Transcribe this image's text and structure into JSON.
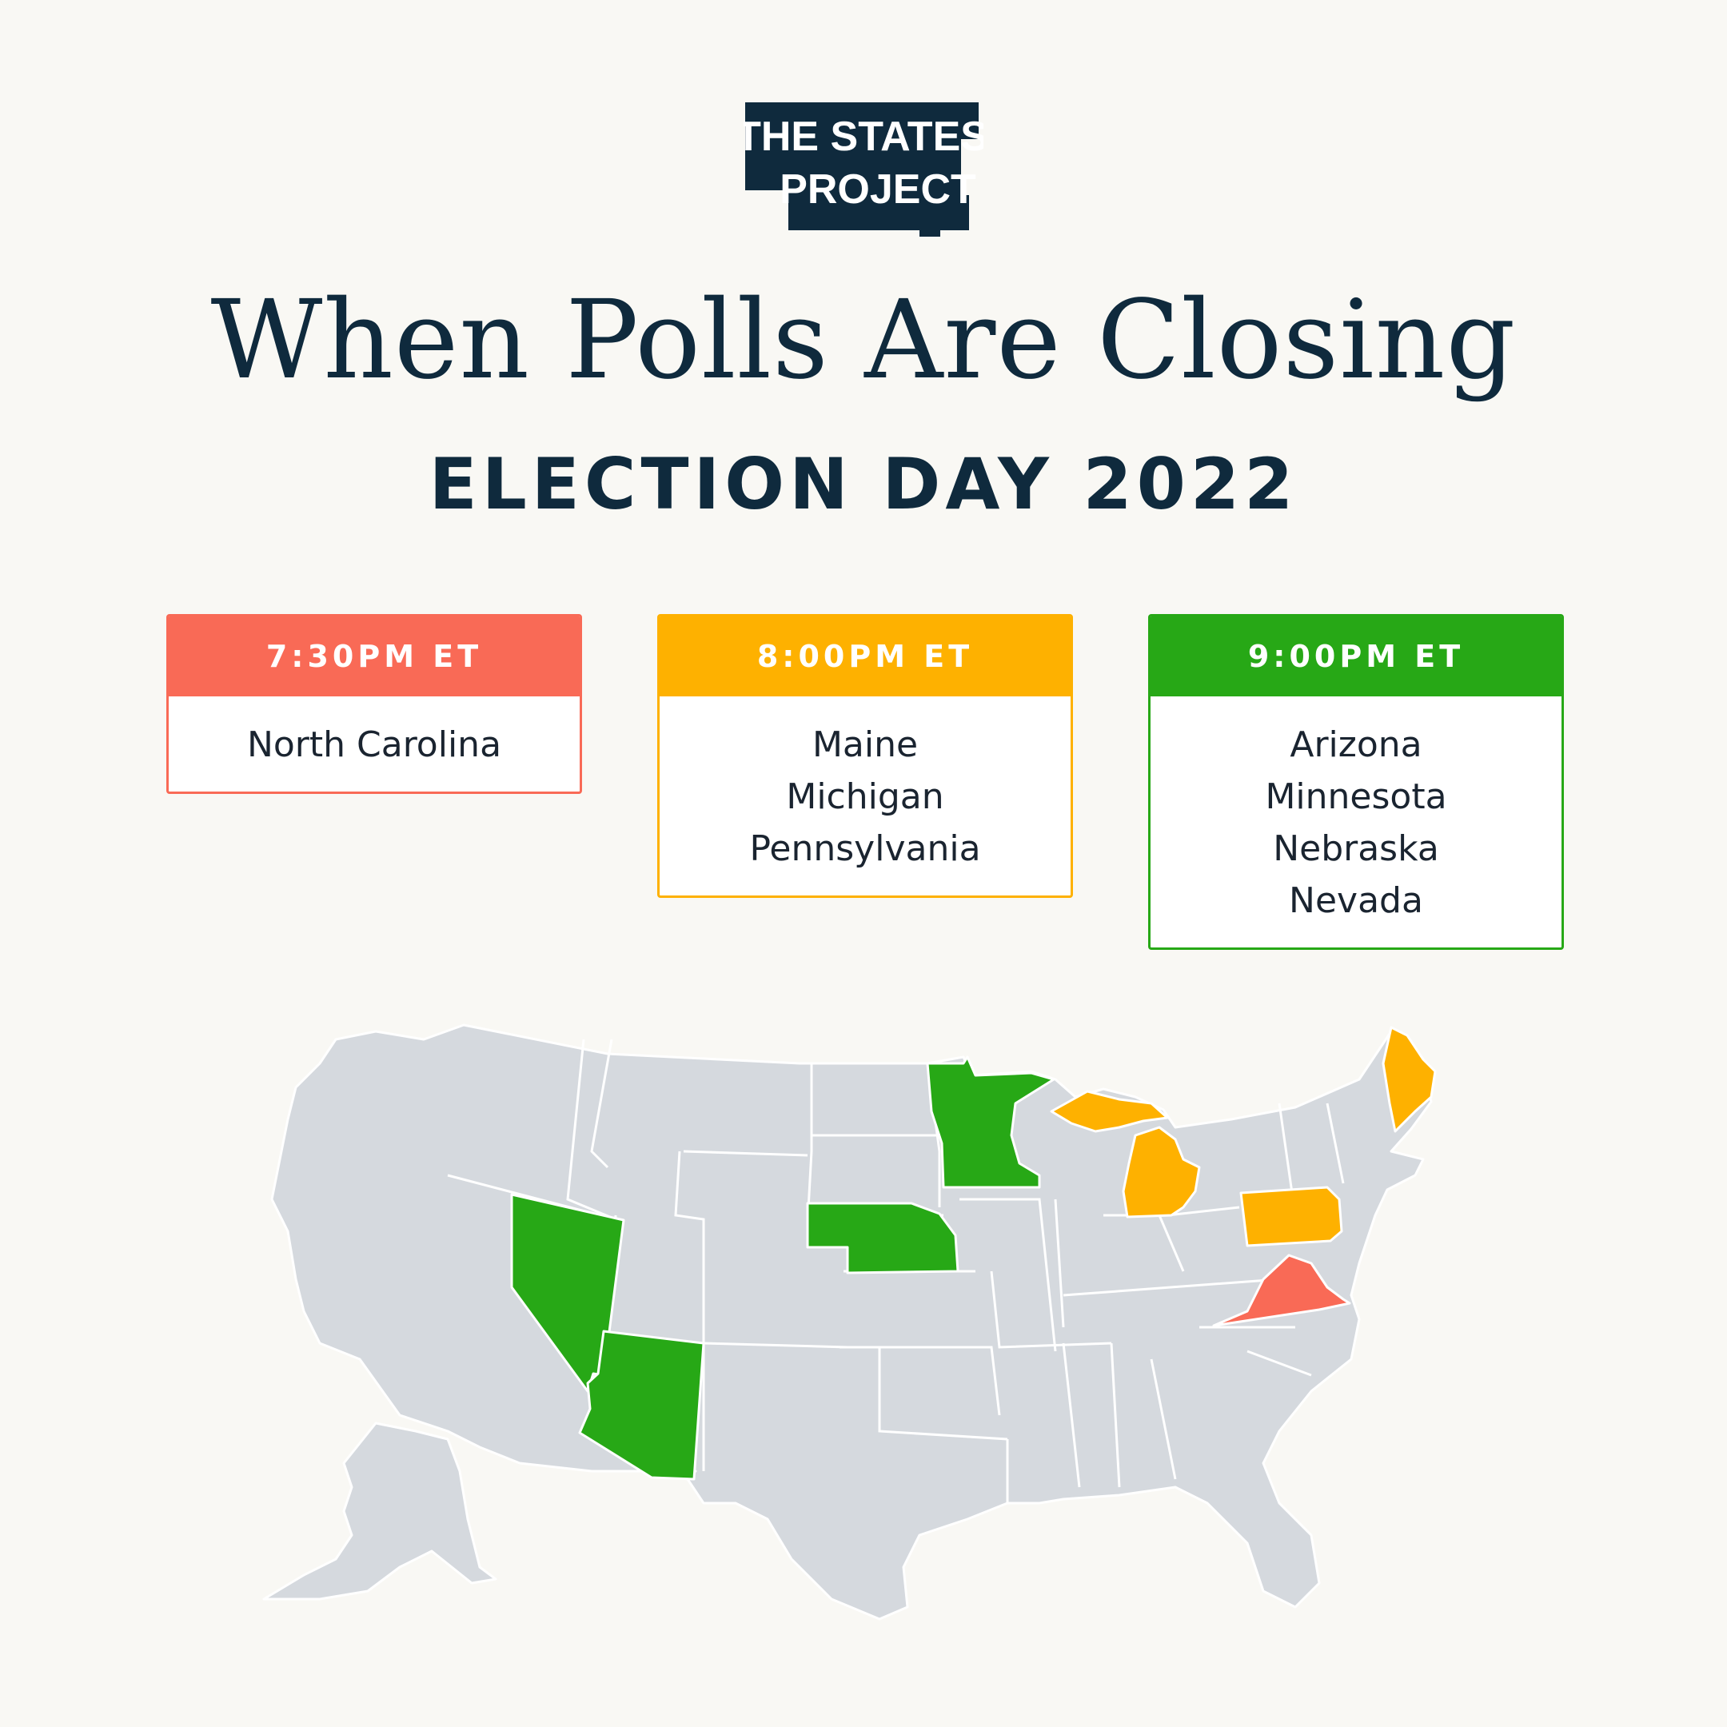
{
  "brand": {
    "line1": "THE STATES",
    "line2": "PROJECT"
  },
  "title": "When Polls Are Closing",
  "subtitle": "ELECTION DAY 2022",
  "colors": {
    "background": "#f9f8f4",
    "navy": "#0f2a3d",
    "red": "#f96a56",
    "orange": "#feb100",
    "green": "#27a816",
    "neutral_state": "#d5d9de"
  },
  "cards": [
    {
      "time": "7:30PM ET",
      "states": [
        "North Carolina"
      ]
    },
    {
      "time": "8:00PM ET",
      "states": [
        "Maine",
        "Michigan",
        "Pennsylvania"
      ]
    },
    {
      "time": "9:00PM ET",
      "states": [
        "Arizona",
        "Minnesota",
        "Nebraska",
        "Nevada"
      ]
    }
  ]
}
